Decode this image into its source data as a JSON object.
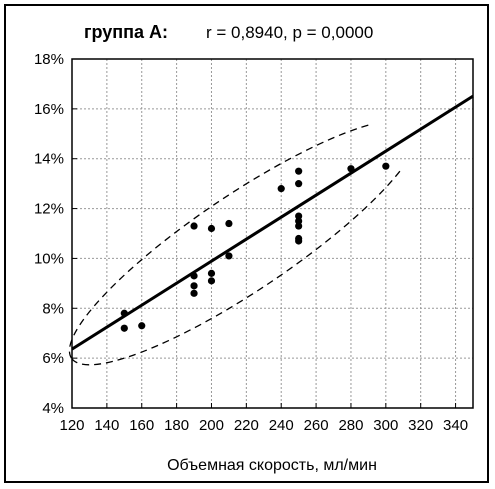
{
  "chart_data": {
    "type": "scatter",
    "title": "группа А:",
    "subtitle": "r = 0,8940, p = 0,0000",
    "xlabel": "Объемная скорость, мл/мин",
    "ylabel": "",
    "xlim": [
      120,
      350
    ],
    "ylim": [
      0.04,
      0.18
    ],
    "x_ticks": [
      "120",
      "140",
      "160",
      "180",
      "200",
      "220",
      "240",
      "260",
      "280",
      "300",
      "320",
      "340"
    ],
    "y_ticks": [
      "4%",
      "6%",
      "8%",
      "10%",
      "12%",
      "14%",
      "16%",
      "18%"
    ],
    "grid": true,
    "points": [
      {
        "x": 150,
        "y": 0.078
      },
      {
        "x": 150,
        "y": 0.072
      },
      {
        "x": 160,
        "y": 0.073
      },
      {
        "x": 190,
        "y": 0.113
      },
      {
        "x": 190,
        "y": 0.093
      },
      {
        "x": 190,
        "y": 0.089
      },
      {
        "x": 190,
        "y": 0.086
      },
      {
        "x": 200,
        "y": 0.112
      },
      {
        "x": 200,
        "y": 0.094
      },
      {
        "x": 200,
        "y": 0.091
      },
      {
        "x": 210,
        "y": 0.114
      },
      {
        "x": 210,
        "y": 0.101
      },
      {
        "x": 240,
        "y": 0.128
      },
      {
        "x": 250,
        "y": 0.135
      },
      {
        "x": 250,
        "y": 0.13
      },
      {
        "x": 250,
        "y": 0.117
      },
      {
        "x": 250,
        "y": 0.115
      },
      {
        "x": 250,
        "y": 0.113
      },
      {
        "x": 250,
        "y": 0.108
      },
      {
        "x": 250,
        "y": 0.107
      },
      {
        "x": 280,
        "y": 0.136
      },
      {
        "x": 300,
        "y": 0.137
      }
    ],
    "regression_line": {
      "x": [
        120,
        350
      ],
      "y": [
        0.0636,
        0.1651
      ]
    },
    "confidence_ellipse": "dashed"
  }
}
